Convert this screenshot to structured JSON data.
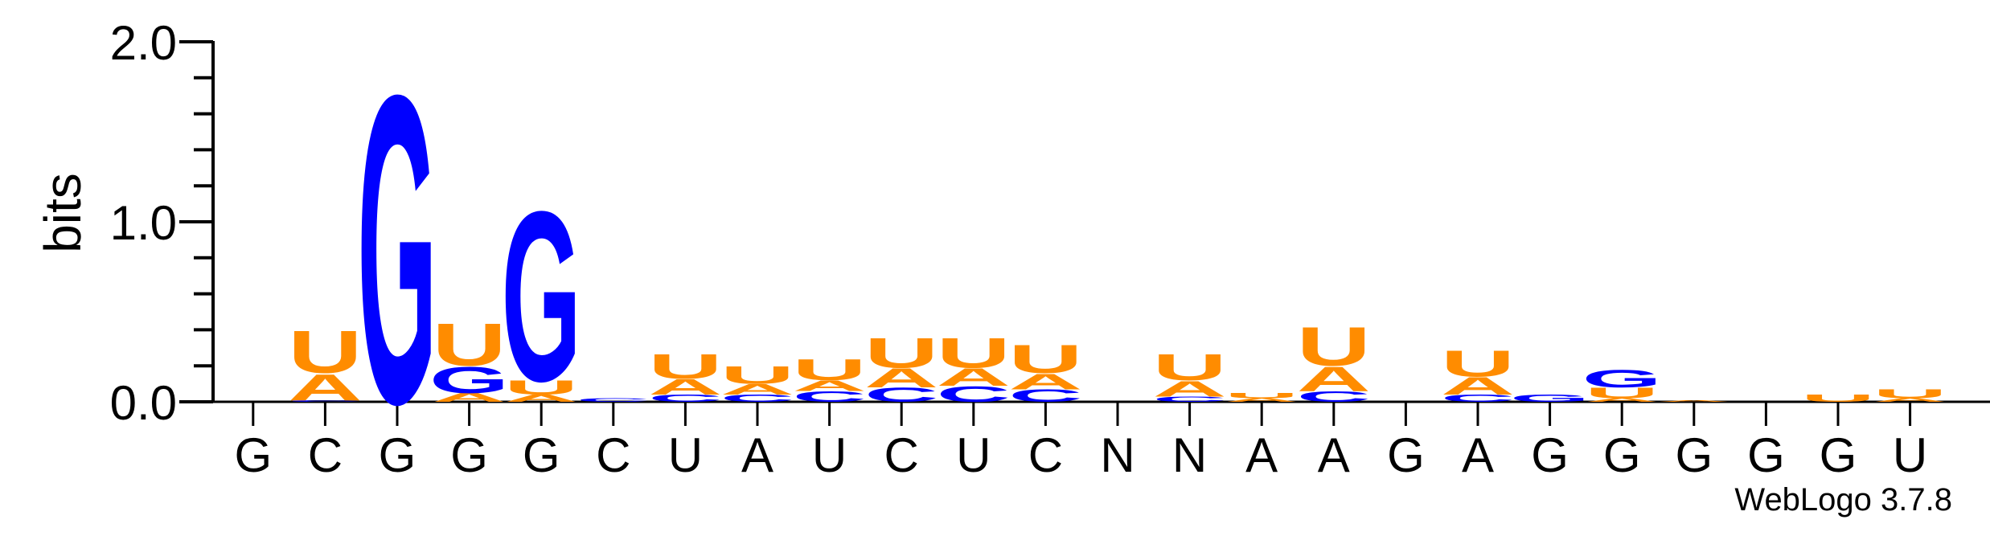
{
  "chart_data": {
    "type": "sequence-logo",
    "ylabel": "bits",
    "ylim": [
      0,
      2.0
    ],
    "yticks": [
      "0.0",
      "1.0",
      "2.0"
    ],
    "x_labels": [
      "G",
      "C",
      "G",
      "G",
      "G",
      "C",
      "U",
      "A",
      "U",
      "C",
      "U",
      "C",
      "N",
      "N",
      "A",
      "A",
      "G",
      "A",
      "G",
      "G",
      "G",
      "G",
      "G",
      "U"
    ],
    "colors": {
      "A": "#ff8c00",
      "U": "#ff8c00",
      "C": "#0000ff",
      "G": "#0000ff"
    },
    "columns": [
      [],
      [
        [
          "C",
          0.01
        ],
        [
          "A",
          0.15
        ],
        [
          "U",
          0.24
        ]
      ],
      [
        [
          "G",
          1.76
        ]
      ],
      [
        [
          "A",
          0.05
        ],
        [
          "G",
          0.15
        ],
        [
          "U",
          0.24
        ]
      ],
      [
        [
          "A",
          0.04
        ],
        [
          "U",
          0.08
        ],
        [
          "G",
          0.97
        ]
      ],
      [
        [
          "C",
          0.02
        ]
      ],
      [
        [
          "C",
          0.04
        ],
        [
          "A",
          0.09
        ],
        [
          "U",
          0.14
        ]
      ],
      [
        [
          "C",
          0.04
        ],
        [
          "A",
          0.06
        ],
        [
          "U",
          0.1
        ]
      ],
      [
        [
          "C",
          0.06
        ],
        [
          "A",
          0.06
        ],
        [
          "U",
          0.12
        ]
      ],
      [
        [
          "C",
          0.08
        ],
        [
          "A",
          0.11
        ],
        [
          "U",
          0.17
        ]
      ],
      [
        [
          "C",
          0.09
        ],
        [
          "A",
          0.1
        ],
        [
          "U",
          0.17
        ]
      ],
      [
        [
          "C",
          0.07
        ],
        [
          "A",
          0.09
        ],
        [
          "U",
          0.16
        ]
      ],
      [],
      [
        [
          "C",
          0.03
        ],
        [
          "A",
          0.09
        ],
        [
          "U",
          0.15
        ]
      ],
      [
        [
          "A",
          0.02
        ],
        [
          "U",
          0.03
        ]
      ],
      [
        [
          "C",
          0.06
        ],
        [
          "A",
          0.14
        ],
        [
          "U",
          0.22
        ]
      ],
      [],
      [
        [
          "C",
          0.04
        ],
        [
          "A",
          0.1
        ],
        [
          "U",
          0.15
        ]
      ],
      [
        [
          "G",
          0.04
        ]
      ],
      [
        [
          "A",
          0.02
        ],
        [
          "U",
          0.06
        ],
        [
          "G",
          0.1
        ]
      ],
      [
        [
          "A",
          0.01
        ]
      ],
      [],
      [
        [
          "U",
          0.04
        ]
      ],
      [
        [
          "A",
          0.02
        ],
        [
          "U",
          0.05
        ]
      ]
    ]
  },
  "credit": "WebLogo 3.7.8"
}
